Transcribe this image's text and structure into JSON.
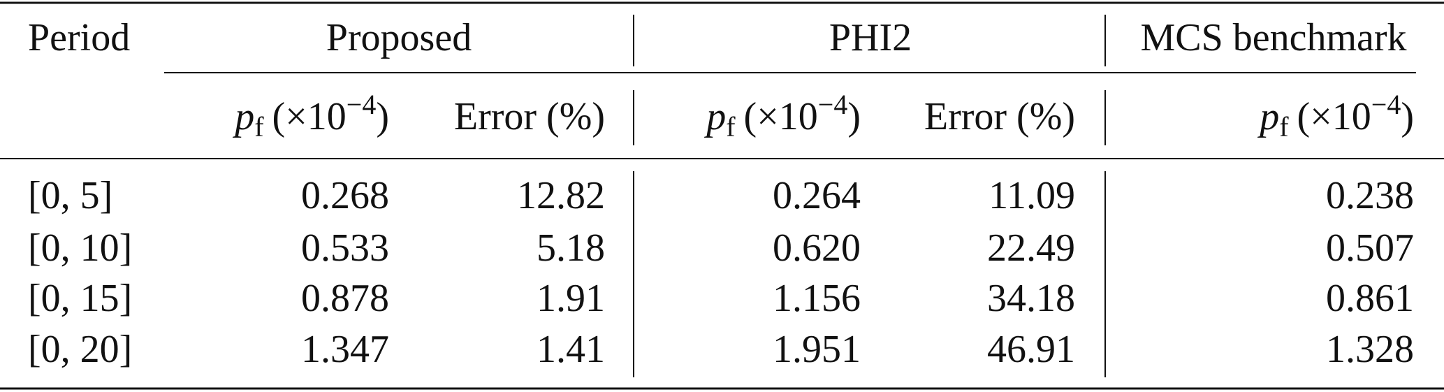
{
  "table": {
    "period_header": "Period",
    "groups": [
      "Proposed",
      "PHI2",
      "MCS benchmark"
    ],
    "pf_header": {
      "symbol": "p",
      "subscript": "f",
      "prefix": "(×10",
      "exponent": "−4",
      "suffix": ")"
    },
    "error_header": "Error (%)",
    "rows": [
      [
        "[0, 5]",
        "0.268",
        "12.82",
        "0.264",
        "11.09",
        "0.238"
      ],
      [
        "[0, 10]",
        "0.533",
        "5.18",
        "0.620",
        "22.49",
        "0.507"
      ],
      [
        "[0, 15]",
        "0.878",
        "1.91",
        "1.156",
        "34.18",
        "0.861"
      ],
      [
        "[0, 20]",
        "1.347",
        "1.41",
        "1.951",
        "46.91",
        "1.328"
      ]
    ]
  }
}
